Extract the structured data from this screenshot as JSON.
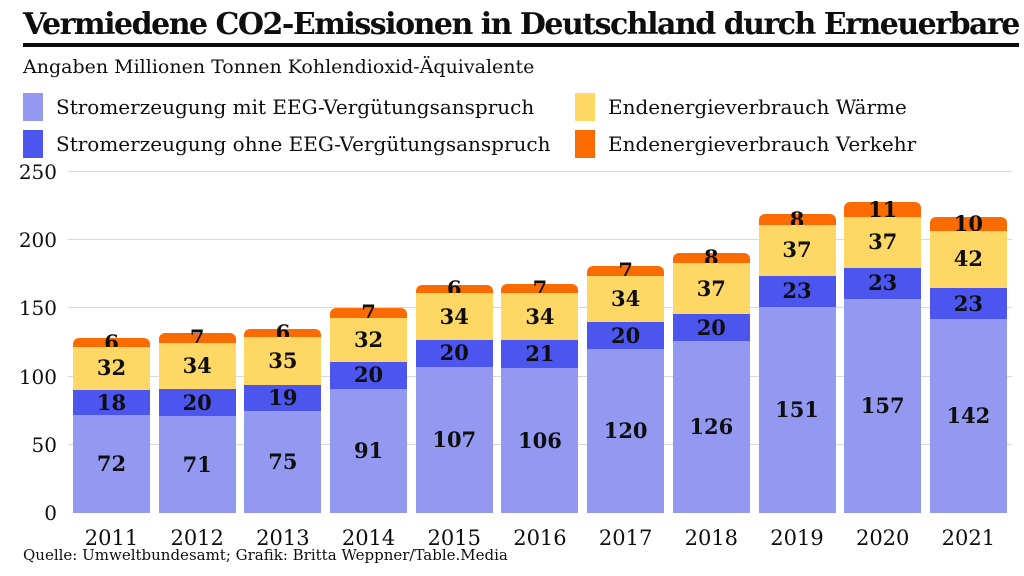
{
  "header": {
    "title": "Vermiedene CO2-Emissionen in Deutschland durch Erneuerbare",
    "subtitle": "Angaben Millionen Tonnen Kohlendioxid-Äquivalente"
  },
  "colors": {
    "eeg_mit": "#9399F1",
    "eeg_ohne": "#4C55EE",
    "waerme": "#FFD765",
    "verkehr": "#FB6B04",
    "gridline": "#d8d8d8",
    "text": "#0e0e0e"
  },
  "legend": [
    {
      "label": "Stromerzeugung mit EEG-Vergütungsanspruch",
      "color": "#9399F1"
    },
    {
      "label": "Stromerzeugung ohne EEG-Vergütungsanspruch",
      "color": "#4C55EE"
    },
    {
      "label": "Endenergieverbrauch Wärme",
      "color": "#FFD765"
    },
    {
      "label": "Endenergieverbrauch Verkehr",
      "color": "#FB6B04"
    }
  ],
  "chart_data": {
    "type": "bar",
    "stacked": true,
    "title": "Vermiedene CO2-Emissionen in Deutschland durch Erneuerbare",
    "subtitle": "Angaben Millionen Tonnen Kohlendioxid-Äquivalente",
    "categories": [
      "2011",
      "2012",
      "2013",
      "2014",
      "2015",
      "2016",
      "2017",
      "2018",
      "2019",
      "2020",
      "2021"
    ],
    "series": [
      {
        "name": "Stromerzeugung mit EEG-Vergütungsanspruch",
        "color": "#9399F1",
        "values": [
          72,
          71,
          75,
          91,
          107,
          106,
          120,
          126,
          151,
          157,
          142
        ]
      },
      {
        "name": "Stromerzeugung ohne EEG-Vergütungsanspruch",
        "color": "#4C55EE",
        "values": [
          18,
          20,
          19,
          20,
          20,
          21,
          20,
          20,
          23,
          23,
          23
        ]
      },
      {
        "name": "Endenergieverbrauch Wärme",
        "color": "#FFD765",
        "values": [
          32,
          34,
          35,
          32,
          34,
          34,
          34,
          37,
          37,
          37,
          42
        ]
      },
      {
        "name": "Endenergieverbrauch Verkehr",
        "color": "#FB6B04",
        "values": [
          6,
          7,
          6,
          7,
          6,
          7,
          7,
          8,
          8,
          11,
          10
        ]
      }
    ],
    "ylim": [
      0,
      250
    ],
    "yticks": [
      0,
      50,
      100,
      150,
      200,
      250
    ],
    "grid": true,
    "legend_position": "top",
    "xlabel": "",
    "ylabel": ""
  },
  "footer": {
    "source": "Quelle: Umweltbundesamt; Grafik: Britta Weppner/Table.Media"
  }
}
